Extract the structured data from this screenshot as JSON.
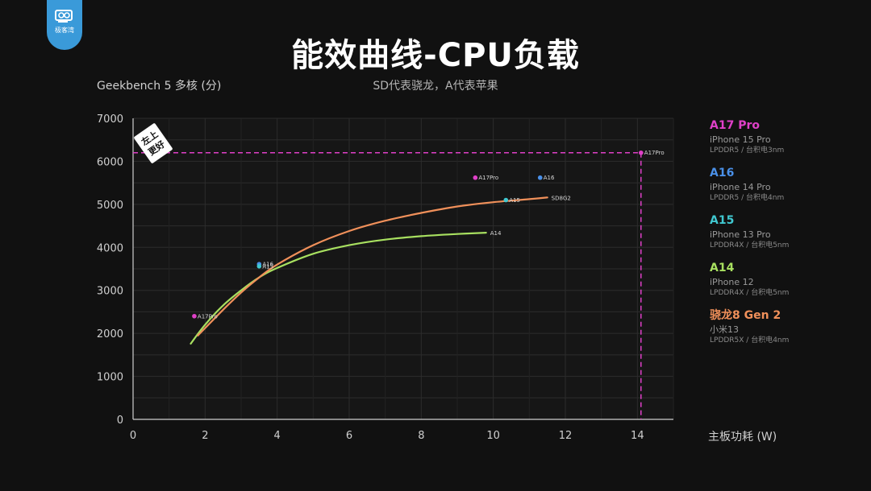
{
  "logo": {
    "icon": "gpu-card-icon",
    "text": "极客湾",
    "color": "#3a9ad9"
  },
  "title": "能效曲线-CPU负载",
  "subtitle": "SD代表骁龙，A代表苹果",
  "corner_badge": {
    "line1": "左上",
    "line2": "更好"
  },
  "legend": [
    {
      "name": "A17 Pro",
      "device": "iPhone 15 Pro",
      "spec": "LPDDR5 / 台积电3nm",
      "color": "#e040c8"
    },
    {
      "name": "A16",
      "device": "iPhone 14 Pro",
      "spec": "LPDDR5 / 台积电4nm",
      "color": "#4a90e8"
    },
    {
      "name": "A15",
      "device": "iPhone 13 Pro",
      "spec": "LPDDR4X / 台积电5nm",
      "color": "#40c8d0"
    },
    {
      "name": "A14",
      "device": "iPhone 12",
      "spec": "LPDDR4X / 台积电5nm",
      "color": "#a8e060"
    },
    {
      "name": "骁龙8 Gen 2",
      "device": "小米13",
      "spec": "LPDDR5X / 台积电4nm",
      "color": "#f0905a"
    }
  ],
  "chart_data": {
    "type": "line",
    "title": "能效曲线-CPU负载",
    "subtitle": "SD代表骁龙，A代表苹果",
    "xlabel": "主板功耗 (W)",
    "ylabel": "Geekbench 5 多核 (分)",
    "xlim": [
      0,
      15
    ],
    "ylim": [
      0,
      7000
    ],
    "xticks": [
      0,
      2,
      4,
      6,
      8,
      10,
      12,
      14
    ],
    "yticks": [
      0,
      1000,
      2000,
      3000,
      4000,
      5000,
      6000,
      7000
    ],
    "grid": true,
    "legend_position": "right",
    "series": [
      {
        "color": "#a8e060",
        "end_label": "A14",
        "x": [
          1.6,
          2.0,
          2.5,
          3.0,
          3.5,
          4.0,
          5.0,
          6.0,
          7.0,
          8.0,
          9.0,
          9.8
        ],
        "y": [
          1760,
          2200,
          2650,
          3000,
          3300,
          3520,
          3850,
          4050,
          4180,
          4260,
          4310,
          4340
        ]
      },
      {
        "color": "#f0905a",
        "end_label": "SD8G2",
        "x": [
          1.8,
          2.5,
          3.0,
          3.5,
          4.0,
          5.0,
          6.0,
          7.0,
          8.0,
          9.0,
          10.0,
          11.0,
          11.5
        ],
        "y": [
          1950,
          2550,
          2950,
          3300,
          3600,
          4050,
          4380,
          4620,
          4800,
          4950,
          5050,
          5120,
          5160
        ]
      }
    ],
    "points": [
      {
        "label": "A17Pro",
        "x": 1.7,
        "y": 2400,
        "color": "#e040c8"
      },
      {
        "label": "A16",
        "x": 3.5,
        "y": 3610,
        "color": "#4a90e8"
      },
      {
        "label": "A15",
        "x": 3.5,
        "y": 3560,
        "color": "#40c8d0"
      },
      {
        "label": "A17Pro",
        "x": 9.5,
        "y": 5620,
        "color": "#e040c8"
      },
      {
        "label": "A16",
        "x": 11.3,
        "y": 5620,
        "color": "#4a90e8"
      },
      {
        "label": "A15",
        "x": 10.35,
        "y": 5100,
        "color": "#40c8d0"
      },
      {
        "label": "A17Pro",
        "x": 14.1,
        "y": 6200,
        "color": "#e040c8"
      }
    ],
    "reference_lines": {
      "x": 14.1,
      "y": 6200,
      "color": "#e040c8"
    }
  }
}
